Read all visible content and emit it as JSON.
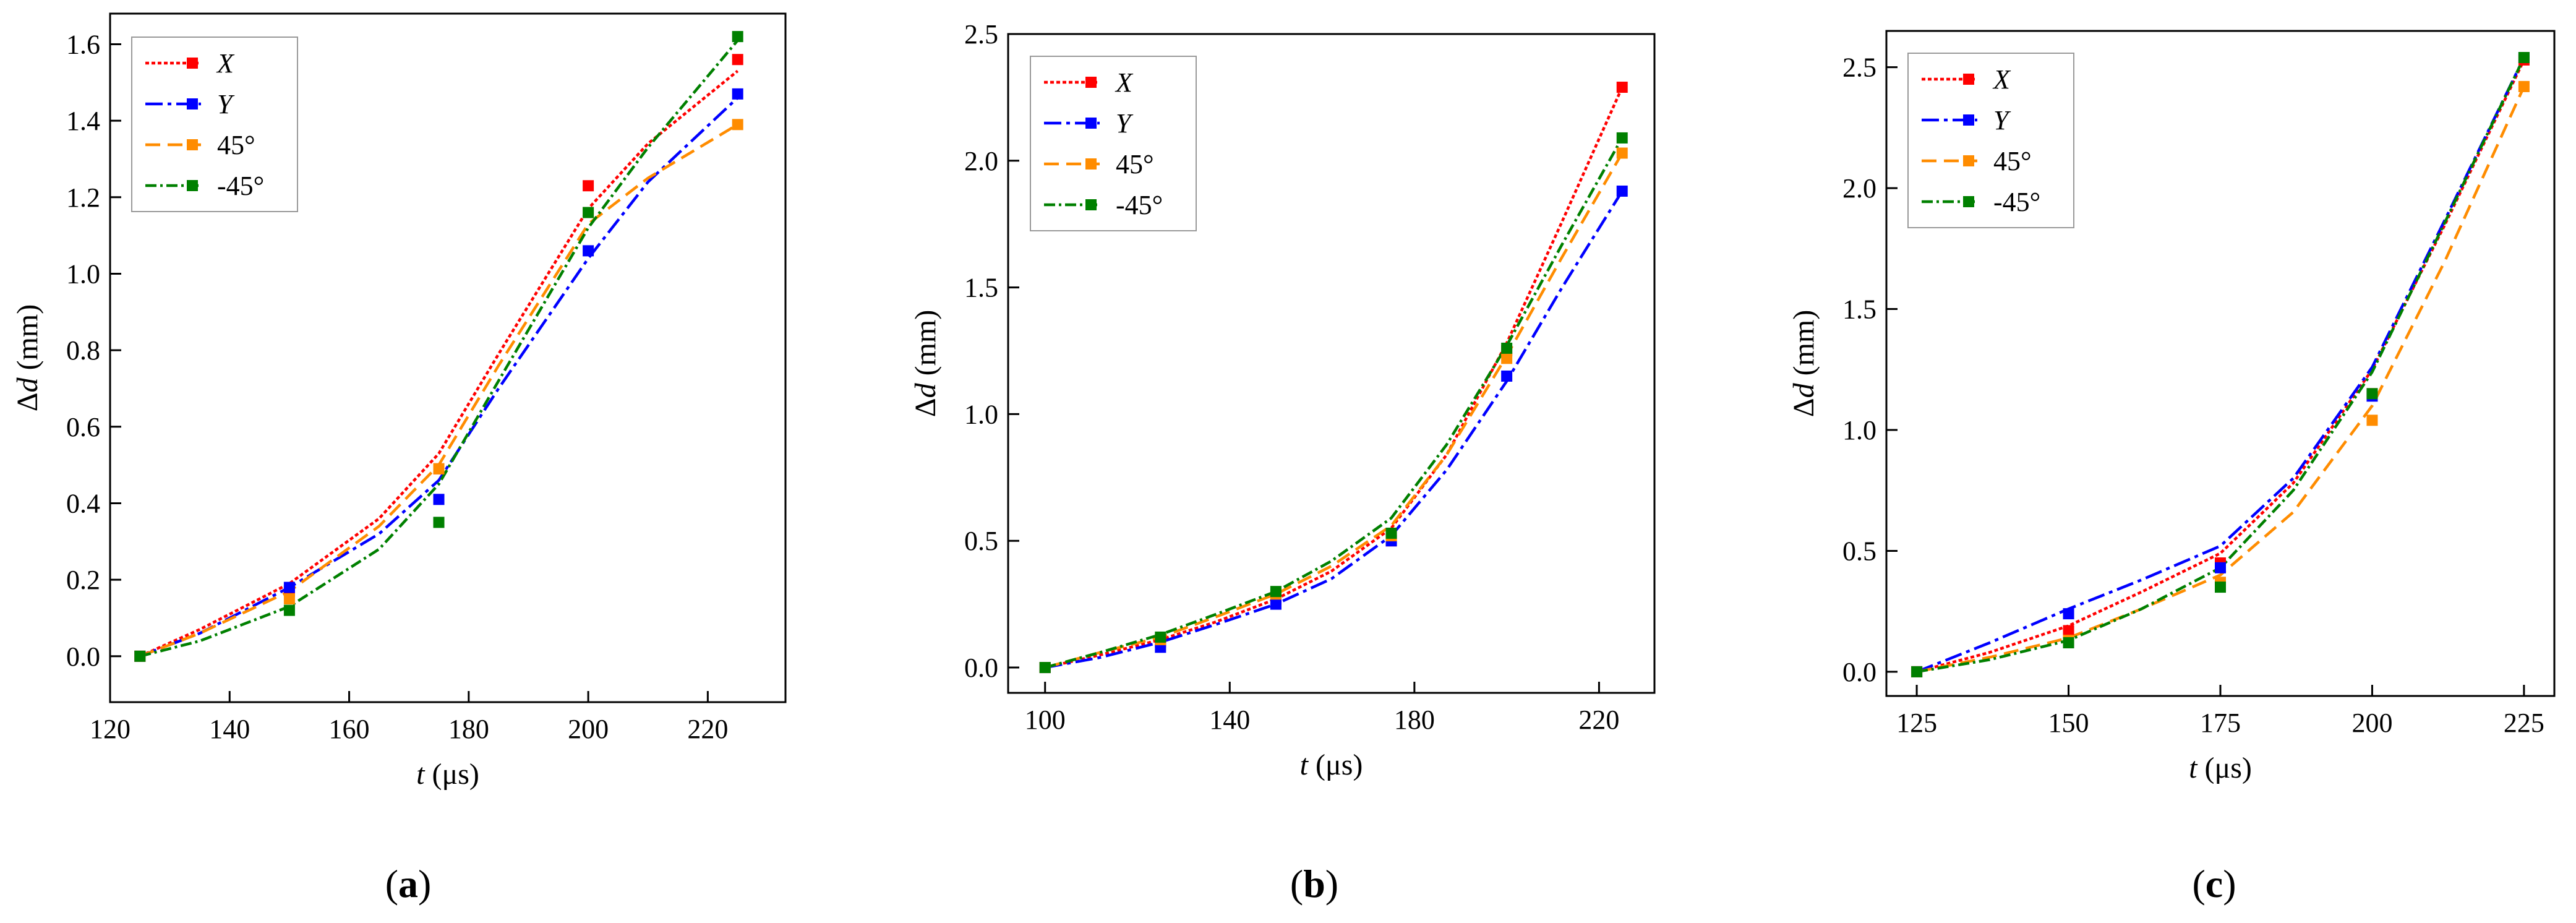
{
  "chart_data": [
    {
      "type": "line",
      "panel_label": "(a)",
      "panel_letter": "a",
      "xlabel_var": "t",
      "xlabel_unit": " (μs)",
      "ylabel_symbol": "Δ",
      "ylabel_var": "d",
      "ylabel_unit": " (mm)",
      "xlim": [
        120,
        233
      ],
      "ylim": [
        -0.12,
        1.68
      ],
      "xticks": [
        120,
        140,
        160,
        180,
        200,
        220
      ],
      "yticks": [
        0.0,
        0.2,
        0.4,
        0.6,
        0.8,
        1.0,
        1.2,
        1.4,
        1.6
      ],
      "ytick_decimals": 1,
      "legend_position": "top-left",
      "x": [
        125,
        150,
        175,
        200,
        225
      ],
      "series": [
        {
          "name": "X",
          "italic": true,
          "color": "#ff0000",
          "dash": "6 4",
          "values": [
            0.0,
            0.17,
            0.49,
            1.23,
            1.56
          ],
          "curve": [
            [
              125,
              0.0
            ],
            [
              135,
              0.07
            ],
            [
              150,
              0.19
            ],
            [
              165,
              0.36
            ],
            [
              175,
              0.53
            ],
            [
              185,
              0.79
            ],
            [
              200,
              1.17
            ],
            [
              210,
              1.34
            ],
            [
              225,
              1.53
            ]
          ]
        },
        {
          "name": "Y",
          "italic": true,
          "color": "#0000ff",
          "dash": "28 8 6 8",
          "values": [
            0.0,
            0.18,
            0.41,
            1.06,
            1.47
          ],
          "curve": [
            [
              125,
              0.0
            ],
            [
              135,
              0.06
            ],
            [
              150,
              0.18
            ],
            [
              165,
              0.32
            ],
            [
              175,
              0.46
            ],
            [
              185,
              0.7
            ],
            [
              200,
              1.04
            ],
            [
              210,
              1.24
            ],
            [
              225,
              1.46
            ]
          ]
        },
        {
          "name": "45°",
          "italic": false,
          "color": "#ff8c00",
          "dash": "24 12",
          "values": [
            0.0,
            0.15,
            0.49,
            1.16,
            1.39
          ],
          "curve": [
            [
              125,
              0.0
            ],
            [
              135,
              0.06
            ],
            [
              150,
              0.17
            ],
            [
              165,
              0.34
            ],
            [
              175,
              0.5
            ],
            [
              185,
              0.76
            ],
            [
              200,
              1.13
            ],
            [
              210,
              1.25
            ],
            [
              225,
              1.39
            ]
          ]
        },
        {
          "name": "-45°",
          "italic": false,
          "color": "#008000",
          "dash": "18 6 4 6",
          "values": [
            0.0,
            0.12,
            0.35,
            1.16,
            1.62
          ],
          "curve": [
            [
              125,
              0.0
            ],
            [
              135,
              0.04
            ],
            [
              150,
              0.13
            ],
            [
              165,
              0.28
            ],
            [
              175,
              0.45
            ],
            [
              185,
              0.72
            ],
            [
              200,
              1.12
            ],
            [
              210,
              1.33
            ],
            [
              225,
              1.61
            ]
          ]
        }
      ]
    },
    {
      "type": "line",
      "panel_label": "(b)",
      "panel_letter": "b",
      "xlabel_var": "t",
      "xlabel_unit": " (μs)",
      "ylabel_symbol": "Δ",
      "ylabel_var": "d",
      "ylabel_unit": " (mm)",
      "xlim": [
        92,
        232
      ],
      "ylim": [
        -0.1,
        2.5
      ],
      "xticks": [
        100,
        140,
        180,
        220
      ],
      "yticks": [
        0.0,
        0.5,
        1.0,
        1.5,
        2.0,
        2.5
      ],
      "ytick_decimals": 1,
      "legend_position": "top-left",
      "x": [
        100,
        125,
        150,
        175,
        200,
        225
      ],
      "series": [
        {
          "name": "X",
          "italic": true,
          "color": "#ff0000",
          "dash": "6 4",
          "values": [
            0.0,
            0.1,
            0.27,
            0.5,
            1.25,
            2.29
          ],
          "curve": [
            [
              100,
              0.0
            ],
            [
              112,
              0.05
            ],
            [
              125,
              0.11
            ],
            [
              137,
              0.18
            ],
            [
              150,
              0.27
            ],
            [
              162,
              0.38
            ],
            [
              175,
              0.55
            ],
            [
              187,
              0.84
            ],
            [
              200,
              1.28
            ],
            [
              212,
              1.76
            ],
            [
              225,
              2.29
            ]
          ]
        },
        {
          "name": "Y",
          "italic": true,
          "color": "#0000ff",
          "dash": "28 8 6 8",
          "values": [
            0.0,
            0.08,
            0.25,
            0.5,
            1.15,
            1.88
          ],
          "curve": [
            [
              100,
              0.0
            ],
            [
              112,
              0.04
            ],
            [
              125,
              0.1
            ],
            [
              137,
              0.17
            ],
            [
              150,
              0.25
            ],
            [
              162,
              0.35
            ],
            [
              175,
              0.52
            ],
            [
              187,
              0.78
            ],
            [
              200,
              1.13
            ],
            [
              212,
              1.5
            ],
            [
              225,
              1.88
            ]
          ]
        },
        {
          "name": "45°",
          "italic": false,
          "color": "#ff8c00",
          "dash": "24 12",
          "values": [
            0.0,
            0.11,
            0.29,
            0.52,
            1.22,
            2.03
          ],
          "curve": [
            [
              100,
              0.0
            ],
            [
              112,
              0.06
            ],
            [
              125,
              0.12
            ],
            [
              137,
              0.2
            ],
            [
              150,
              0.29
            ],
            [
              162,
              0.4
            ],
            [
              175,
              0.56
            ],
            [
              187,
              0.84
            ],
            [
              200,
              1.23
            ],
            [
              212,
              1.62
            ],
            [
              225,
              2.03
            ]
          ]
        },
        {
          "name": "-45°",
          "italic": false,
          "color": "#008000",
          "dash": "18 6 4 6",
          "values": [
            0.0,
            0.12,
            0.3,
            0.53,
            1.26,
            2.09
          ],
          "curve": [
            [
              100,
              0.0
            ],
            [
              112,
              0.06
            ],
            [
              125,
              0.13
            ],
            [
              137,
              0.21
            ],
            [
              150,
              0.3
            ],
            [
              162,
              0.42
            ],
            [
              175,
              0.59
            ],
            [
              187,
              0.88
            ],
            [
              200,
              1.27
            ],
            [
              212,
              1.67
            ],
            [
              225,
              2.09
            ]
          ]
        }
      ]
    },
    {
      "type": "line",
      "panel_label": "(c)",
      "panel_letter": "c",
      "xlabel_var": "t",
      "xlabel_unit": " (μs)",
      "ylabel_symbol": "Δ",
      "ylabel_var": "d",
      "ylabel_unit": " (mm)",
      "xlim": [
        120,
        230
      ],
      "ylim": [
        -0.1,
        2.65
      ],
      "xticks": [
        125,
        150,
        175,
        200,
        225
      ],
      "yticks": [
        0.0,
        0.5,
        1.0,
        1.5,
        2.0,
        2.5
      ],
      "ytick_decimals": 1,
      "legend_position": "top-left",
      "x": [
        125,
        150,
        175,
        200,
        225
      ],
      "series": [
        {
          "name": "X",
          "italic": true,
          "color": "#ff0000",
          "dash": "6 4",
          "values": [
            0.0,
            0.17,
            0.45,
            1.15,
            2.53
          ],
          "curve": [
            [
              125,
              0.0
            ],
            [
              137,
              0.08
            ],
            [
              150,
              0.19
            ],
            [
              162,
              0.33
            ],
            [
              175,
              0.49
            ],
            [
              187,
              0.78
            ],
            [
              200,
              1.25
            ],
            [
              212,
              1.85
            ],
            [
              225,
              2.53
            ]
          ]
        },
        {
          "name": "Y",
          "italic": true,
          "color": "#0000ff",
          "dash": "28 8 6 8",
          "values": [
            0.0,
            0.24,
            0.43,
            1.14,
            2.54
          ],
          "curve": [
            [
              125,
              0.0
            ],
            [
              137,
              0.12
            ],
            [
              150,
              0.26
            ],
            [
              162,
              0.38
            ],
            [
              175,
              0.52
            ],
            [
              187,
              0.8
            ],
            [
              200,
              1.26
            ],
            [
              212,
              1.87
            ],
            [
              225,
              2.54
            ]
          ]
        },
        {
          "name": "45°",
          "italic": false,
          "color": "#ff8c00",
          "dash": "24 12",
          "values": [
            0.0,
            0.13,
            0.37,
            1.04,
            2.42
          ],
          "curve": [
            [
              125,
              0.0
            ],
            [
              137,
              0.06
            ],
            [
              150,
              0.14
            ],
            [
              162,
              0.26
            ],
            [
              175,
              0.4
            ],
            [
              187,
              0.66
            ],
            [
              200,
              1.1
            ],
            [
              212,
              1.7
            ],
            [
              225,
              2.42
            ]
          ]
        },
        {
          "name": "-45°",
          "italic": false,
          "color": "#008000",
          "dash": "18 6 4 6",
          "values": [
            0.0,
            0.12,
            0.35,
            1.15,
            2.54
          ],
          "curve": [
            [
              125,
              0.0
            ],
            [
              137,
              0.05
            ],
            [
              150,
              0.13
            ],
            [
              162,
              0.26
            ],
            [
              175,
              0.43
            ],
            [
              187,
              0.75
            ],
            [
              200,
              1.24
            ],
            [
              212,
              1.86
            ],
            [
              225,
              2.54
            ]
          ]
        }
      ]
    }
  ]
}
